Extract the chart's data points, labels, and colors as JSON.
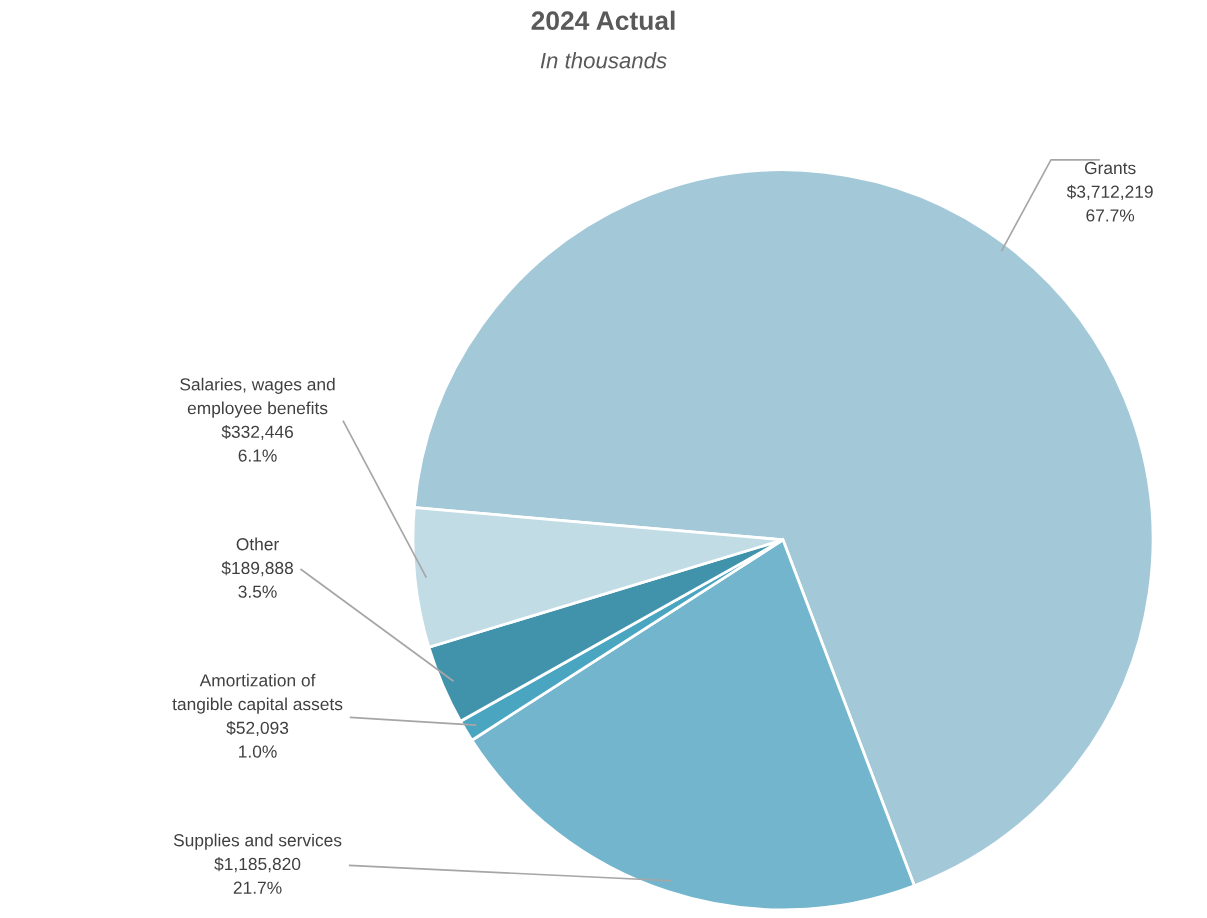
{
  "chart_data": {
    "type": "pie",
    "title": "2024 Actual",
    "subtitle": "In thousands",
    "categories": [
      "Grants",
      "Supplies and services",
      "Amortization of\ntangible capital assets",
      "Other",
      "Salaries, wages and\nemployee benefits"
    ],
    "values": [
      3712219,
      1185820,
      52093,
      189888,
      332446
    ],
    "value_labels": [
      "$3,712,219\n67.7%",
      "$1,185,820\n21.7%",
      "$52,093\n1.0%",
      "$189,888\n3.5%",
      "$332,446\n6.1%"
    ],
    "colors": [
      "#a3c9d9",
      "#72b5cc",
      "#4aa5c0",
      "#4193ab",
      "#c2dce5"
    ]
  }
}
